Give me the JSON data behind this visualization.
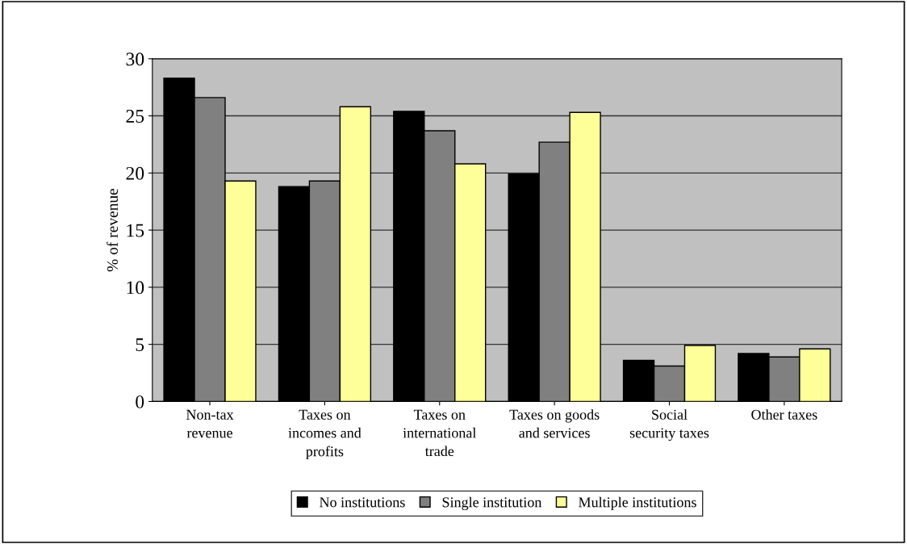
{
  "chart_data": {
    "type": "bar",
    "ylabel": "% of revenue",
    "categories": [
      "Non-tax revenue",
      "Taxes on incomes and profits",
      "Taxes on international trade",
      "Taxes on goods and services",
      "Social security taxes",
      "Other taxes"
    ],
    "series": [
      {
        "name": "No institutions",
        "color": "#000000",
        "values": [
          28.3,
          18.8,
          25.4,
          19.9,
          3.6,
          4.2
        ]
      },
      {
        "name": "Single institution",
        "color": "#808080",
        "values": [
          26.6,
          19.3,
          23.7,
          22.7,
          3.1,
          3.9
        ]
      },
      {
        "name": "Multiple institutions",
        "color": "#ffff99",
        "values": [
          19.3,
          25.8,
          20.8,
          25.3,
          4.9,
          4.6
        ]
      }
    ],
    "ylim": [
      0,
      30
    ],
    "yticks": [
      0,
      5,
      10,
      15,
      20,
      25,
      30
    ],
    "grid": "y",
    "legend": "bottom"
  }
}
